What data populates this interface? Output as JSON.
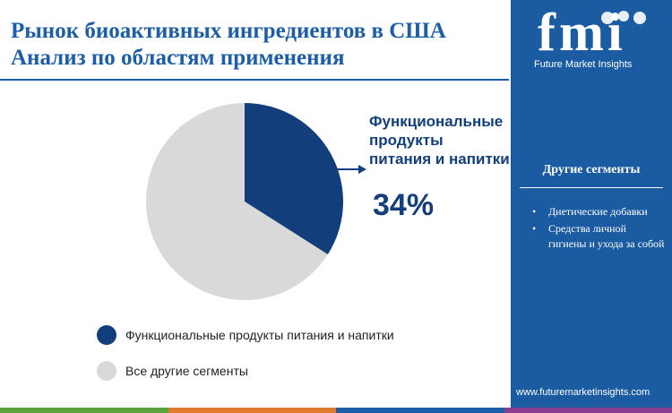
{
  "title": {
    "line1": "Рынок биоактивных ингредиентов в США",
    "line2": "Анализ по областям применения"
  },
  "chart_data": {
    "type": "pie",
    "categories": [
      "Функциональные продукты питания и напитки",
      "Все другие сегменты"
    ],
    "values": [
      34,
      66
    ],
    "colors": [
      "#123f7c",
      "#d9d9d9"
    ],
    "unit": "%",
    "legend_placement": "bottom-left"
  },
  "callout": {
    "lines": [
      "Функциональные",
      "продукты",
      "питания и напитки"
    ],
    "value": "34%"
  },
  "legend": {
    "items": [
      {
        "label": "Функциональные продукты питания и напитки",
        "color": "#123f7c"
      },
      {
        "label": "Все другие сегменты",
        "color": "#d9d9d9"
      }
    ]
  },
  "panel": {
    "logo_text": "fmi",
    "logo_subtitle": "Future Market Insights",
    "heading": "Другие сегменты",
    "items": [
      "Диетические добавки",
      "Средства личной гигиены и ухода за собой"
    ],
    "url": "www.futuremarketinsights.com",
    "background": "#1b5ba2"
  },
  "footer_colors": [
    "#5aa33c",
    "#e07a2e",
    "#1d5ea8",
    "#8a3c8f"
  ]
}
